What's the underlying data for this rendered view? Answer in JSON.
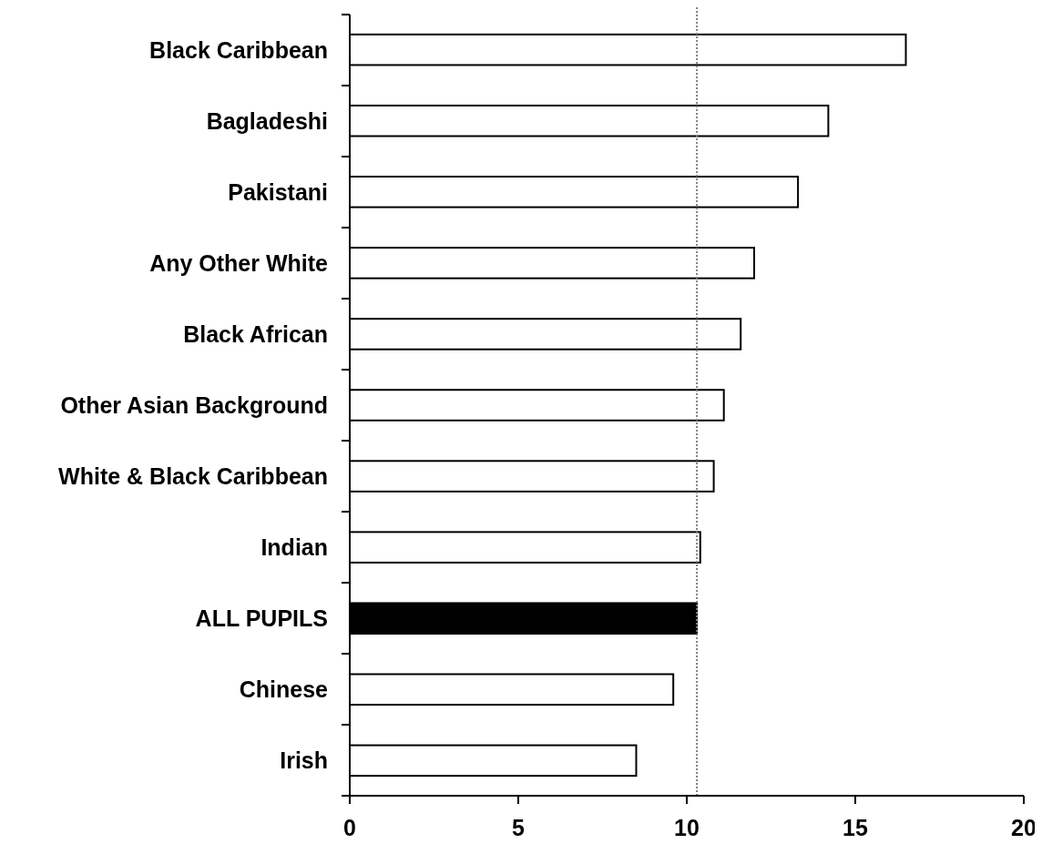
{
  "chart_data": {
    "type": "bar",
    "orientation": "horizontal",
    "categories": [
      "Black Caribbean",
      "Bagladeshi",
      "Pakistani",
      "Any Other White",
      "Black African",
      "Other Asian Background",
      "White & Black Caribbean",
      "Indian",
      "ALL PUPILS",
      "Chinese",
      "Irish"
    ],
    "values": [
      16.5,
      14.2,
      13.3,
      12.0,
      11.6,
      11.1,
      10.8,
      10.4,
      10.3,
      9.6,
      8.5
    ],
    "colors": [
      "#ffffff",
      "#ffffff",
      "#ffffff",
      "#ffffff",
      "#ffffff",
      "#ffffff",
      "#ffffff",
      "#ffffff",
      "#000000",
      "#ffffff",
      "#ffffff"
    ],
    "xlim": [
      0,
      20
    ],
    "xticks": [
      0,
      5,
      10,
      15,
      20
    ],
    "grid": false,
    "ref_lines": [
      {
        "axis": "x",
        "value": 10.3,
        "color": "#808080",
        "line_style": "dotted"
      }
    ]
  }
}
